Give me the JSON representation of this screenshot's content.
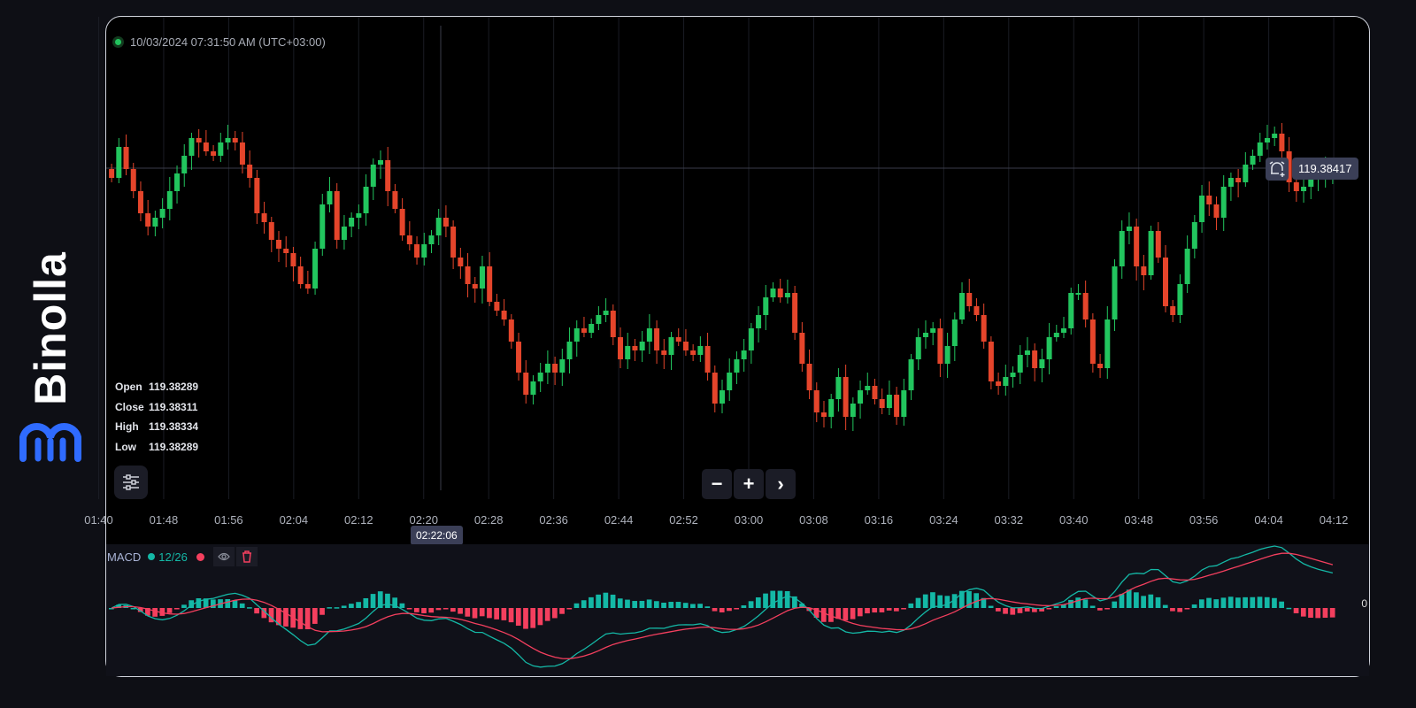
{
  "brand": {
    "name": "Binolla",
    "accent": "#2f6bff"
  },
  "chart": {
    "timestamp": "10/03/2024  07:31:50 AM  (UTC+03:00)",
    "ohlc": [
      {
        "label": "Open",
        "value": "119.38289"
      },
      {
        "label": "Close",
        "value": "119.38311"
      },
      {
        "label": "High",
        "value": "119.38334"
      },
      {
        "label": "Low",
        "value": "119.38289"
      }
    ],
    "current_price": "119.38417",
    "crosshair_time": "02:22:06",
    "zoom_controls": {
      "minus": "−",
      "plus": "+",
      "next": "›"
    },
    "time_labels": [
      "01:40",
      "01:48",
      "01:56",
      "02:04",
      "02:12",
      "02:20",
      "02:28",
      "02:36",
      "02:44",
      "02:52",
      "03:00",
      "03:08",
      "03:16",
      "03:24",
      "03:32",
      "03:40",
      "03:48",
      "03:56",
      "04:04",
      "04:12"
    ],
    "colors": {
      "up": "#22c55e",
      "down": "#e5452b",
      "grid": "#1a1c24"
    }
  },
  "chart_data": {
    "type": "candlestick",
    "timeframe": "1m",
    "current_price": 119.38417,
    "closes": [
      119.38406,
      119.38441,
      119.38416,
      119.38391,
      119.38366,
      119.38351,
      119.38361,
      119.38371,
      119.38391,
      119.38411,
      119.38431,
      119.38451,
      119.38446,
      119.38436,
      119.38431,
      119.38446,
      119.38451,
      119.38446,
      119.38421,
      119.38406,
      119.38366,
      119.38356,
      119.38336,
      119.38326,
      119.38321,
      119.38306,
      119.38286,
      119.38281,
      119.38326,
      119.38376,
      119.38391,
      119.38336,
      119.38351,
      119.38361,
      119.38366,
      119.38396,
      119.38421,
      119.38426,
      119.38391,
      119.38371,
      119.38341,
      119.38331,
      119.38316,
      119.38331,
      119.38341,
      119.38361,
      119.38351,
      119.38316,
      119.38306,
      119.38286,
      119.38281,
      119.38306,
      119.38266,
      119.38256,
      119.38246,
      119.38221,
      119.38186,
      119.38161,
      119.38176,
      119.38186,
      119.38196,
      119.38186,
      119.38201,
      119.38221,
      119.38236,
      119.38231,
      119.38241,
      119.38251,
      119.38256,
      119.38226,
      119.38201,
      119.38216,
      119.38211,
      119.38221,
      119.38236,
      119.38211,
      119.38206,
      119.38226,
      119.38221,
      119.38211,
      119.38206,
      119.38216,
      119.38186,
      119.38151,
      119.38166,
      119.38186,
      119.38201,
      119.38211,
      119.38236,
      119.38251,
      119.38271,
      119.38281,
      119.38271,
      119.38276,
      119.38231,
      119.38196,
      119.38166,
      119.38141,
      119.38136,
      119.38156,
      119.38181,
      119.38136,
      119.38151,
      119.38166,
      119.38171,
      119.38156,
      119.38146,
      119.38161,
      119.38136,
      119.38166,
      119.38201,
      119.38226,
      119.38231,
      119.38236,
      119.38196,
      119.38216,
      119.38246,
      119.38276,
      119.38261,
      119.38251,
      119.38221,
      119.38176,
      119.38171,
      119.38181,
      119.38186,
      119.38206,
      119.38211,
      119.38191,
      119.38201,
      119.38226,
      119.38231,
      119.38236,
      119.38276,
      119.38276,
      119.38246,
      119.38196,
      119.38191,
      119.38246,
      119.38306,
      119.38346,
      119.38351,
      119.38306,
      119.38296,
      119.38346,
      119.38316,
      119.38261,
      119.38251,
      119.38286,
      119.38326,
      119.38356,
      119.38386,
      119.38376,
      119.38361,
      119.38396,
      119.38406,
      119.38401,
      119.38421,
      119.38431,
      119.38446,
      119.38451,
      119.38456,
      119.38436,
      119.38401,
      119.38391,
      119.38396,
      119.38406,
      119.38411,
      119.38416,
      119.38417
    ]
  },
  "macd": {
    "name": "MACD",
    "periods": "12/26",
    "zero_label": "0",
    "colors": {
      "macd": "#14b8a6",
      "signal": "#f43f5e",
      "hist_up": "#14b8a6",
      "hist_down": "#f43f5e"
    }
  }
}
